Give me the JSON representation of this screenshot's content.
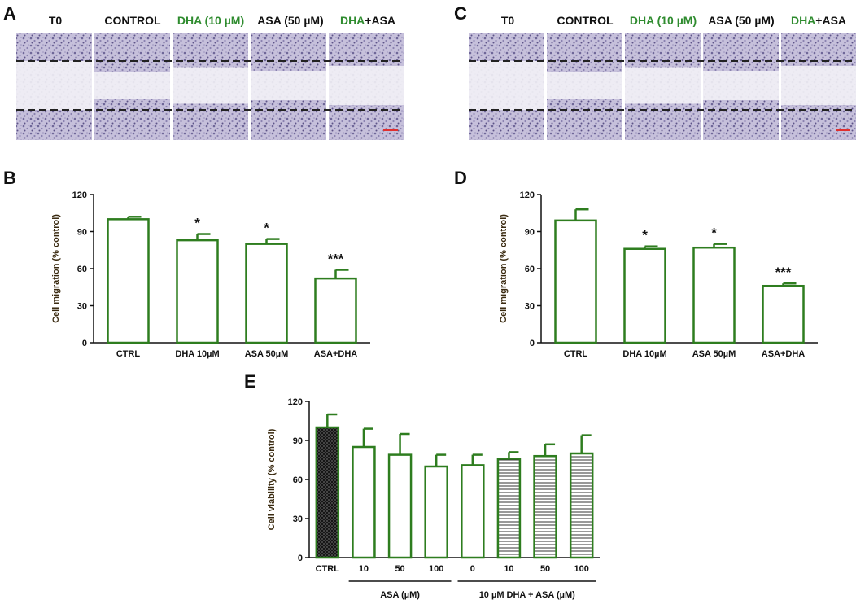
{
  "colors": {
    "accent": "#2e7d1f",
    "header_green": "#2e8b2e",
    "axis": "#111111",
    "dashed": "#222222",
    "scalebar": "#e03030",
    "micro_bg": "#c9c3dd",
    "micro_gap": "#f2f1f6"
  },
  "panel_a": {
    "label": "A",
    "headers": [
      {
        "green": "",
        "black": "T0"
      },
      {
        "green": "",
        "black": "CONTROL"
      },
      {
        "green": "DHA (10 µM)",
        "black": ""
      },
      {
        "green": "",
        "black": "ASA (50 µM)"
      },
      {
        "green": "DHA",
        "black": "+ASA"
      }
    ]
  },
  "panel_c": {
    "label": "C",
    "headers": [
      {
        "green": "",
        "black": "T0"
      },
      {
        "green": "",
        "black": "CONTROL"
      },
      {
        "green": "DHA (10 µM)",
        "black": ""
      },
      {
        "green": "",
        "black": "ASA (50 µM)"
      },
      {
        "green": "DHA",
        "black": "+ASA"
      }
    ]
  },
  "chart_data": [
    {
      "id": "B",
      "label": "B",
      "type": "bar",
      "ylabel": "Cell migration (% control)",
      "ylim": [
        0,
        120
      ],
      "yticks": [
        0,
        30,
        60,
        90,
        120
      ],
      "categories": [
        "CTRL",
        "DHA 10µM",
        "ASA 50µM",
        "ASA+DHA"
      ],
      "values": [
        100,
        83,
        80,
        52
      ],
      "errors": [
        2,
        5,
        4,
        7
      ],
      "significance": [
        "",
        "*",
        "*",
        "***"
      ]
    },
    {
      "id": "D",
      "label": "D",
      "type": "bar",
      "ylabel": "Cell migration (% control)",
      "ylim": [
        0,
        120
      ],
      "yticks": [
        0,
        30,
        60,
        90,
        120
      ],
      "categories": [
        "CTRL",
        "DHA 10µM",
        "ASA 50µM",
        "ASA+DHA"
      ],
      "values": [
        99,
        76,
        77,
        46
      ],
      "errors": [
        9,
        2,
        3,
        2
      ],
      "significance": [
        "",
        "*",
        "*",
        "***"
      ]
    },
    {
      "id": "E",
      "label": "E",
      "type": "bar",
      "ylabel": "Cell viability (% control)",
      "ylim": [
        0,
        120
      ],
      "yticks": [
        0,
        30,
        60,
        90,
        120
      ],
      "categories": [
        "CTRL",
        "10",
        "50",
        "100",
        "0",
        "10",
        "50",
        "100"
      ],
      "values": [
        100,
        85,
        79,
        70,
        71,
        76,
        78,
        80
      ],
      "errors": [
        10,
        14,
        16,
        9,
        8,
        5,
        9,
        14
      ],
      "fills": [
        "crosshatch",
        "white",
        "white",
        "white",
        "white",
        "stripes",
        "stripes",
        "stripes"
      ],
      "groups": [
        {
          "label": "ASA (µM)",
          "from": 1,
          "to": 3
        },
        {
          "label": "10 µM DHA + ASA (µM)",
          "from": 4,
          "to": 7
        }
      ]
    }
  ]
}
